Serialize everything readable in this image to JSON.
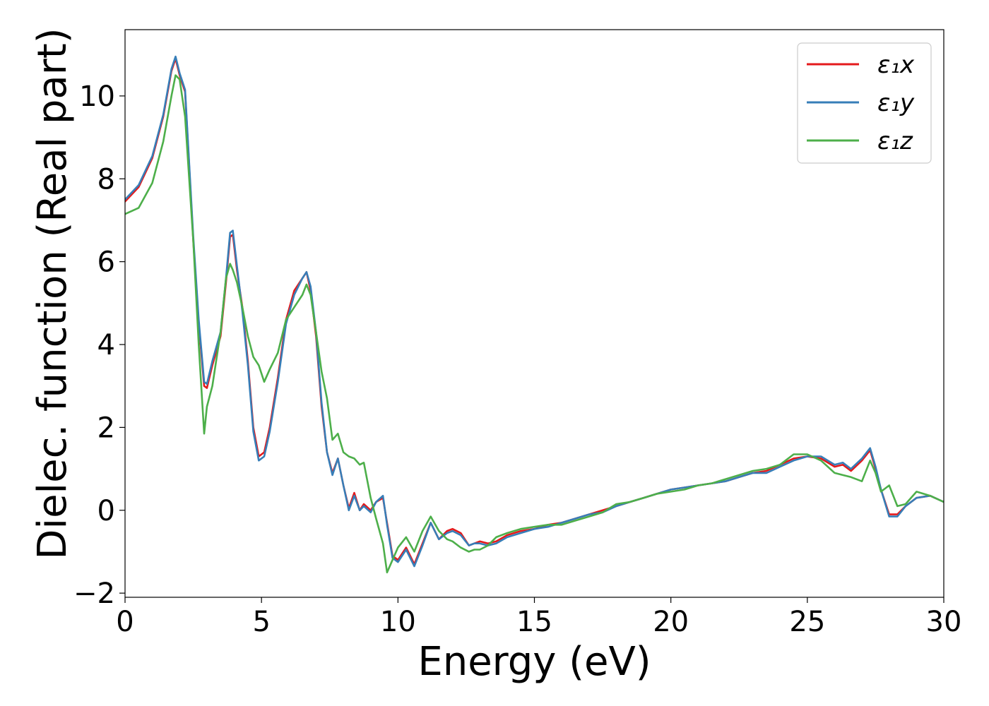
{
  "chart_data": {
    "type": "line",
    "title": "",
    "xlabel": "Energy (eV)",
    "ylabel": "Dielec. function (Real part)",
    "xlim": [
      0,
      30
    ],
    "ylim": [
      -2.1,
      11.6
    ],
    "xticks": [
      0,
      5,
      10,
      15,
      20,
      25,
      30
    ],
    "yticks": [
      -2,
      0,
      2,
      4,
      6,
      8,
      10
    ],
    "xtick_labels": [
      "0",
      "5",
      "10",
      "15",
      "20",
      "25",
      "30"
    ],
    "ytick_labels": [
      "−2",
      "0",
      "2",
      "4",
      "6",
      "8",
      "10"
    ],
    "grid": false,
    "legend_position": "top-right",
    "series": [
      {
        "name": "ε₁x",
        "color": "#e41a1c",
        "x": [
          0,
          0.5,
          1.0,
          1.4,
          1.7,
          1.85,
          2.0,
          2.2,
          2.5,
          2.7,
          2.9,
          3.0,
          3.2,
          3.5,
          3.7,
          3.85,
          3.95,
          4.1,
          4.3,
          4.5,
          4.7,
          4.9,
          5.1,
          5.3,
          5.6,
          5.9,
          6.2,
          6.5,
          6.65,
          6.8,
          7.0,
          7.2,
          7.4,
          7.6,
          7.8,
          8.0,
          8.2,
          8.4,
          8.6,
          8.75,
          9.0,
          9.2,
          9.45,
          9.6,
          9.8,
          10.0,
          10.3,
          10.6,
          10.9,
          11.2,
          11.5,
          11.8,
          12.0,
          12.3,
          12.6,
          12.8,
          13.0,
          13.3,
          13.6,
          14.0,
          14.5,
          15.0,
          15.5,
          16.0,
          16.5,
          17.0,
          17.5,
          18.0,
          18.5,
          19.0,
          19.5,
          20.0,
          20.5,
          21.0,
          21.5,
          22.0,
          22.5,
          23.0,
          23.5,
          24.0,
          24.5,
          25.0,
          25.5,
          26.0,
          26.3,
          26.6,
          27.0,
          27.3,
          27.5,
          27.7,
          28.0,
          28.3,
          28.6,
          29.0,
          29.5,
          30.0
        ],
        "values": [
          7.45,
          7.8,
          8.5,
          9.5,
          10.6,
          10.9,
          10.5,
          10.1,
          6.5,
          4.5,
          3.0,
          2.95,
          3.5,
          4.2,
          5.5,
          6.6,
          6.65,
          5.8,
          4.9,
          3.6,
          2.0,
          1.3,
          1.4,
          2.0,
          3.2,
          4.6,
          5.3,
          5.6,
          5.75,
          5.3,
          4.2,
          2.5,
          1.4,
          0.9,
          1.25,
          0.6,
          0.05,
          0.42,
          0.0,
          0.15,
          0.0,
          0.2,
          0.3,
          -0.3,
          -1.1,
          -1.2,
          -0.9,
          -1.3,
          -0.8,
          -0.3,
          -0.7,
          -0.5,
          -0.45,
          -0.55,
          -0.85,
          -0.8,
          -0.75,
          -0.8,
          -0.75,
          -0.6,
          -0.5,
          -0.45,
          -0.35,
          -0.3,
          -0.2,
          -0.1,
          0.0,
          0.1,
          0.2,
          0.3,
          0.4,
          0.5,
          0.55,
          0.6,
          0.65,
          0.7,
          0.8,
          0.9,
          0.95,
          1.1,
          1.25,
          1.3,
          1.25,
          1.05,
          1.1,
          0.95,
          1.2,
          1.45,
          1.0,
          0.5,
          -0.1,
          -0.1,
          0.1,
          0.3,
          0.35,
          0.2
        ]
      },
      {
        "name": "ε₁y",
        "color": "#377eb8",
        "x": [
          0,
          0.5,
          1.0,
          1.4,
          1.7,
          1.85,
          2.0,
          2.2,
          2.5,
          2.7,
          2.9,
          3.0,
          3.2,
          3.5,
          3.7,
          3.85,
          3.95,
          4.1,
          4.3,
          4.5,
          4.7,
          4.9,
          5.1,
          5.3,
          5.6,
          5.9,
          6.2,
          6.5,
          6.65,
          6.8,
          7.0,
          7.2,
          7.4,
          7.6,
          7.8,
          8.0,
          8.2,
          8.4,
          8.6,
          8.75,
          9.0,
          9.2,
          9.45,
          9.6,
          9.8,
          10.0,
          10.3,
          10.6,
          10.9,
          11.2,
          11.5,
          11.8,
          12.0,
          12.3,
          12.6,
          12.8,
          13.0,
          13.3,
          13.6,
          14.0,
          14.5,
          15.0,
          15.5,
          16.0,
          16.5,
          17.0,
          17.5,
          18.0,
          18.5,
          19.0,
          19.5,
          20.0,
          20.5,
          21.0,
          21.5,
          22.0,
          22.5,
          23.0,
          23.5,
          24.0,
          24.5,
          25.0,
          25.5,
          26.0,
          26.3,
          26.6,
          27.0,
          27.3,
          27.5,
          27.7,
          28.0,
          28.3,
          28.6,
          29.0,
          29.5,
          30.0
        ],
        "values": [
          7.5,
          7.85,
          8.55,
          9.55,
          10.65,
          10.95,
          10.55,
          10.15,
          6.6,
          4.6,
          3.1,
          3.05,
          3.6,
          4.3,
          5.6,
          6.7,
          6.75,
          5.9,
          4.8,
          3.5,
          1.9,
          1.2,
          1.3,
          1.9,
          3.1,
          4.5,
          5.2,
          5.6,
          5.75,
          5.4,
          4.3,
          2.6,
          1.4,
          0.85,
          1.25,
          0.6,
          0.0,
          0.35,
          0.0,
          0.1,
          -0.05,
          0.2,
          0.35,
          -0.35,
          -1.15,
          -1.25,
          -0.95,
          -1.35,
          -0.85,
          -0.3,
          -0.7,
          -0.55,
          -0.5,
          -0.6,
          -0.85,
          -0.8,
          -0.8,
          -0.85,
          -0.8,
          -0.65,
          -0.55,
          -0.45,
          -0.4,
          -0.3,
          -0.2,
          -0.1,
          -0.05,
          0.1,
          0.2,
          0.3,
          0.4,
          0.5,
          0.55,
          0.6,
          0.65,
          0.7,
          0.8,
          0.9,
          0.9,
          1.05,
          1.2,
          1.3,
          1.3,
          1.1,
          1.15,
          1.0,
          1.25,
          1.5,
          1.05,
          0.5,
          -0.15,
          -0.15,
          0.1,
          0.3,
          0.35,
          0.2
        ]
      },
      {
        "name": "ε₁z",
        "color": "#4daf4a",
        "x": [
          0,
          0.5,
          1.0,
          1.4,
          1.7,
          1.85,
          2.0,
          2.2,
          2.5,
          2.7,
          2.9,
          3.0,
          3.2,
          3.5,
          3.7,
          3.85,
          3.95,
          4.1,
          4.3,
          4.5,
          4.7,
          4.9,
          5.1,
          5.3,
          5.6,
          5.9,
          6.2,
          6.5,
          6.65,
          6.8,
          7.0,
          7.2,
          7.4,
          7.6,
          7.8,
          8.0,
          8.2,
          8.4,
          8.6,
          8.75,
          9.0,
          9.2,
          9.45,
          9.6,
          9.8,
          10.0,
          10.3,
          10.6,
          10.9,
          11.2,
          11.5,
          11.8,
          12.0,
          12.3,
          12.6,
          12.8,
          13.0,
          13.3,
          13.6,
          14.0,
          14.5,
          15.0,
          15.5,
          16.0,
          16.5,
          17.0,
          17.5,
          18.0,
          18.5,
          19.0,
          19.5,
          20.0,
          20.5,
          21.0,
          21.5,
          22.0,
          22.5,
          23.0,
          23.5,
          24.0,
          24.5,
          25.0,
          25.5,
          26.0,
          26.3,
          26.6,
          27.0,
          27.3,
          27.5,
          27.7,
          28.0,
          28.3,
          28.6,
          29.0,
          29.5,
          30.0
        ],
        "values": [
          7.15,
          7.3,
          7.9,
          8.9,
          10.0,
          10.5,
          10.4,
          9.5,
          6.5,
          4.0,
          1.85,
          2.5,
          3.0,
          4.3,
          5.6,
          5.95,
          5.8,
          5.5,
          4.9,
          4.2,
          3.7,
          3.5,
          3.1,
          3.4,
          3.8,
          4.6,
          4.9,
          5.2,
          5.45,
          5.2,
          4.3,
          3.35,
          2.7,
          1.7,
          1.85,
          1.4,
          1.3,
          1.25,
          1.1,
          1.15,
          0.3,
          -0.2,
          -0.8,
          -1.5,
          -1.2,
          -0.9,
          -0.65,
          -1.0,
          -0.5,
          -0.15,
          -0.5,
          -0.7,
          -0.75,
          -0.9,
          -1.0,
          -0.95,
          -0.95,
          -0.85,
          -0.65,
          -0.55,
          -0.45,
          -0.4,
          -0.35,
          -0.35,
          -0.25,
          -0.15,
          -0.05,
          0.15,
          0.2,
          0.3,
          0.4,
          0.45,
          0.5,
          0.6,
          0.65,
          0.75,
          0.85,
          0.95,
          1.0,
          1.1,
          1.35,
          1.35,
          1.2,
          0.9,
          0.85,
          0.8,
          0.7,
          1.2,
          0.9,
          0.45,
          0.6,
          0.1,
          0.15,
          0.45,
          0.35,
          0.2
        ]
      }
    ]
  }
}
